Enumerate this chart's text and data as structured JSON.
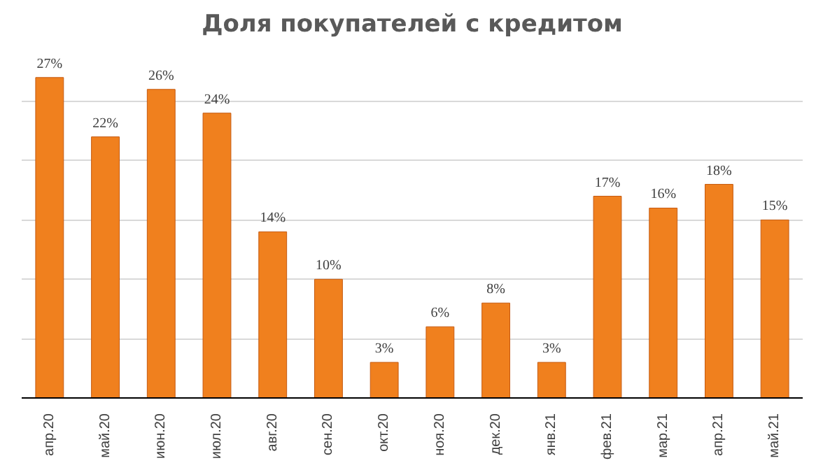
{
  "chart_data": {
    "type": "bar",
    "title": "Доля покупателей с кредитом",
    "categories": [
      "апр.20",
      "май.20",
      "июн.20",
      "июл.20",
      "авг.20",
      "сен.20",
      "окт.20",
      "ноя.20",
      "дек.20",
      "янв.21",
      "фев.21",
      "мар.21",
      "апр.21",
      "май.21"
    ],
    "values": [
      27,
      22,
      26,
      24,
      14,
      10,
      3,
      6,
      8,
      3,
      17,
      16,
      18,
      15
    ],
    "value_labels": [
      "27%",
      "22%",
      "26%",
      "24%",
      "14%",
      "10%",
      "3%",
      "6%",
      "8%",
      "3%",
      "17%",
      "16%",
      "18%",
      "15%"
    ],
    "color": "#f0801e",
    "yticks": [
      {
        "value": 0,
        "label": null
      },
      {
        "value": 5,
        "label": null
      },
      {
        "value": 10,
        "label": null
      },
      {
        "value": 15,
        "label": null
      },
      {
        "value": 20,
        "label": null
      },
      {
        "value": 25,
        "label": null
      }
    ],
    "grid": "y",
    "tick_labels": "x"
  }
}
